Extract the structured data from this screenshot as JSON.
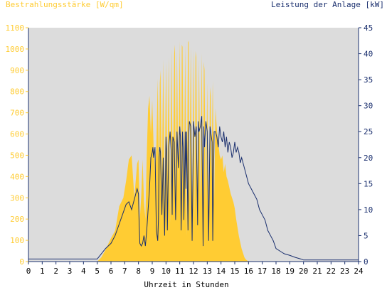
{
  "colors": {
    "irradiance": "#ffcc33",
    "power": "#1a2f6e",
    "plot_bg": "#dcdcdc",
    "frame": "#1a2f6e",
    "x_axis_text": "#000000"
  },
  "chart_data": {
    "type": "area",
    "left_title": "Bestrahlungsstärke [W/qm]",
    "right_title": "Leistung der Anlage [kW]",
    "xlabel": "Uhrzeit in Stunden",
    "xlim": [
      0,
      24
    ],
    "ylim_left": [
      0,
      1100
    ],
    "ylim_right": [
      0,
      45
    ],
    "x_ticks": [
      "0",
      "1",
      "2",
      "3",
      "4",
      "5",
      "6",
      "7",
      "8",
      "9",
      "10",
      "11",
      "12",
      "13",
      "14",
      "15",
      "16",
      "17",
      "18",
      "19",
      "20",
      "21",
      "22",
      "23",
      "24"
    ],
    "y_left_ticks": [
      "0",
      "100",
      "200",
      "300",
      "400",
      "500",
      "600",
      "700",
      "800",
      "900",
      "1000",
      "1100"
    ],
    "y_right_ticks": [
      "0",
      "5",
      "10",
      "15",
      "20",
      "25",
      "30",
      "35",
      "40",
      "45"
    ],
    "series": [
      {
        "name": "Bestrahlungsstärke [W/qm]",
        "axis": "left",
        "style": "area",
        "x": [
          0,
          5.0,
          5.3,
          5.6,
          6.0,
          6.3,
          6.6,
          6.9,
          7.1,
          7.3,
          7.5,
          7.7,
          7.9,
          8.0,
          8.1,
          8.2,
          8.3,
          8.4,
          8.5,
          8.6,
          8.7,
          8.8,
          8.9,
          9.0,
          9.1,
          9.2,
          9.3,
          9.4,
          9.5,
          9.55,
          9.6,
          9.7,
          9.8,
          9.9,
          10.0,
          10.1,
          10.2,
          10.3,
          10.4,
          10.5,
          10.6,
          10.65,
          10.7,
          10.8,
          10.9,
          11.0,
          11.1,
          11.15,
          11.2,
          11.3,
          11.4,
          11.5,
          11.6,
          11.65,
          11.7,
          11.8,
          11.9,
          12.0,
          12.1,
          12.15,
          12.2,
          12.3,
          12.4,
          12.5,
          12.6,
          12.7,
          12.75,
          12.8,
          12.9,
          13.0,
          13.1,
          13.2,
          13.25,
          13.3,
          13.4,
          13.5,
          13.6,
          13.7,
          13.8,
          13.9,
          14.0,
          14.1,
          14.2,
          14.3,
          14.4,
          14.5,
          14.6,
          14.7,
          14.8,
          14.9,
          15.0,
          15.1,
          15.2,
          15.3,
          15.4,
          15.5,
          15.6,
          15.7,
          15.8,
          15.9,
          16.0,
          16.2,
          16.4,
          16.6,
          16.8,
          17.0,
          17.2,
          17.4,
          17.6,
          17.8,
          18.0,
          18.3,
          18.6,
          19.0,
          19.4,
          19.8,
          20.0,
          24
        ],
        "values": [
          0,
          0,
          20,
          55,
          110,
          145,
          260,
          300,
          380,
          480,
          500,
          300,
          460,
          480,
          200,
          310,
          480,
          280,
          200,
          500,
          720,
          780,
          600,
          760,
          540,
          420,
          550,
          860,
          380,
          840,
          900,
          360,
          950,
          250,
          940,
          400,
          960,
          180,
          1000,
          350,
          980,
          1020,
          320,
          990,
          350,
          1040,
          200,
          1020,
          1010,
          300,
          1020,
          120,
          1030,
          1040,
          290,
          1010,
          240,
          1000,
          200,
          990,
          960,
          180,
          950,
          280,
          980,
          160,
          940,
          900,
          250,
          840,
          180,
          820,
          780,
          400,
          850,
          280,
          720,
          620,
          560,
          500,
          480,
          500,
          420,
          460,
          400,
          380,
          350,
          320,
          300,
          280,
          250,
          200,
          160,
          120,
          90,
          60,
          40,
          20,
          10,
          5,
          2,
          0,
          0,
          0,
          0,
          0,
          0,
          0,
          0,
          0,
          0,
          0,
          0,
          0,
          0,
          0,
          0,
          0
        ]
      },
      {
        "name": "Leistung der Anlage [kW]",
        "axis": "right",
        "style": "line",
        "x": [
          0,
          5.0,
          5.3,
          5.6,
          6.0,
          6.3,
          6.5,
          6.7,
          6.9,
          7.1,
          7.3,
          7.5,
          7.7,
          7.9,
          8.0,
          8.05,
          8.1,
          8.2,
          8.3,
          8.4,
          8.5,
          8.6,
          8.7,
          8.8,
          8.9,
          9.0,
          9.05,
          9.1,
          9.2,
          9.3,
          9.4,
          9.45,
          9.5,
          9.55,
          9.6,
          9.7,
          9.8,
          9.9,
          10.0,
          10.05,
          10.1,
          10.2,
          10.3,
          10.4,
          10.45,
          10.5,
          10.6,
          10.7,
          10.8,
          10.9,
          11.0,
          11.05,
          11.1,
          11.2,
          11.25,
          11.3,
          11.4,
          11.45,
          11.5,
          11.6,
          11.65,
          11.7,
          11.8,
          11.9,
          12.0,
          12.1,
          12.2,
          12.3,
          12.35,
          12.4,
          12.5,
          12.6,
          12.7,
          12.75,
          12.8,
          12.9,
          13.0,
          13.1,
          13.2,
          13.3,
          13.35,
          13.4,
          13.5,
          13.6,
          13.7,
          13.8,
          13.9,
          14.0,
          14.1,
          14.2,
          14.3,
          14.4,
          14.5,
          14.6,
          14.7,
          14.8,
          14.9,
          15.0,
          15.1,
          15.2,
          15.3,
          15.4,
          15.5,
          15.6,
          15.7,
          15.8,
          15.9,
          16.0,
          16.2,
          16.4,
          16.6,
          16.8,
          17.0,
          17.2,
          17.4,
          17.6,
          17.8,
          18.0,
          18.3,
          18.6,
          19.0,
          19.4,
          19.8,
          20.0,
          24
        ],
        "values": [
          0.5,
          0.5,
          1.5,
          2.5,
          3.5,
          5,
          6.5,
          8,
          9.5,
          11,
          11.5,
          10,
          12,
          14,
          13,
          7,
          3.5,
          3,
          3.5,
          5,
          3,
          6,
          10,
          14,
          20,
          21,
          22,
          20,
          22,
          6,
          4,
          8,
          20,
          22,
          21,
          9,
          20,
          5,
          24,
          21,
          6,
          22,
          25,
          20,
          9,
          24,
          23,
          8,
          25,
          18,
          26,
          24,
          6,
          25,
          22,
          8,
          25,
          14,
          25,
          6,
          24,
          27,
          26,
          4,
          27,
          24,
          26,
          7,
          27,
          25,
          26,
          28,
          3,
          26,
          22,
          27,
          25,
          4,
          26,
          24,
          23,
          4,
          25,
          25,
          24,
          22,
          26,
          24,
          23,
          25,
          22,
          24,
          21,
          23,
          22,
          20,
          21,
          23,
          21,
          22,
          21,
          19,
          20,
          19,
          18,
          17,
          16,
          15,
          14,
          13,
          12,
          10,
          9,
          8,
          6,
          5,
          4,
          2.5,
          2,
          1.5,
          1.2,
          0.8,
          0.5,
          0.3,
          0.3
        ]
      }
    ]
  }
}
